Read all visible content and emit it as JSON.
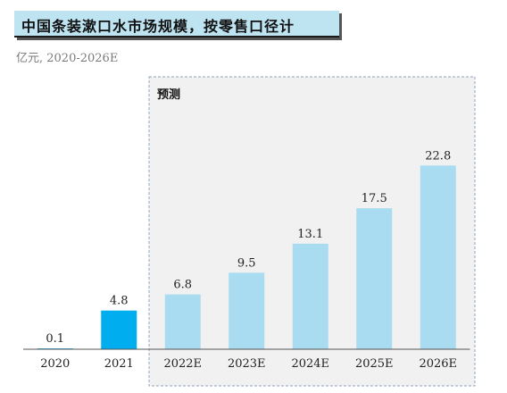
{
  "header": {
    "title": "中国条装漱口水市场规模，按零售口径计",
    "subtitle": "亿元, 2020-2026E"
  },
  "forecast_label": "预测",
  "colors": {
    "actual_bar": "#00aeef",
    "forecast_bar": "#a9dcf0",
    "dashed_border": "#8ea3b8",
    "forecast_bg": "#f1f1f1"
  },
  "chart_data": {
    "type": "bar",
    "categories": [
      "2020",
      "2021",
      "2022E",
      "2023E",
      "2024E",
      "2025E",
      "2026E"
    ],
    "values": [
      0.1,
      4.8,
      6.8,
      9.5,
      13.1,
      17.5,
      22.8
    ],
    "value_labels": [
      "0.1",
      "4.8",
      "6.8",
      "9.5",
      "13.1",
      "17.5",
      "22.8"
    ],
    "unit": "亿元",
    "forecast_from_index": 2,
    "ylim": [
      0,
      24.5
    ]
  }
}
